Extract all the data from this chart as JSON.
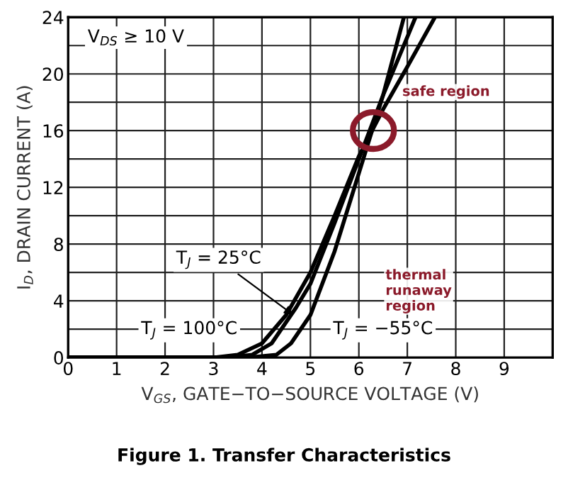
{
  "chart_data": {
    "type": "line",
    "title": "Figure 1. Transfer Characteristics",
    "xlabel": "V$_{GS}$, GATE−TO−SOURCE VOLTAGE (V)",
    "ylabel": "I$_{D}$, DRAIN CURRENT (A)",
    "xlim": [
      0,
      10
    ],
    "ylim": [
      0,
      24
    ],
    "xticks": [
      0,
      1,
      2,
      3,
      4,
      5,
      6,
      7,
      8,
      9
    ],
    "yticks": [
      0,
      {
        "value": 2,
        "label": null
      },
      4,
      {
        "value": 6,
        "label": null
      },
      8,
      {
        "value": 10,
        "label": null
      },
      12,
      {
        "value": 14,
        "label": null
      },
      16,
      {
        "value": 18,
        "label": null
      },
      20,
      {
        "value": 22,
        "label": null
      },
      24
    ],
    "grid": true,
    "marker": "none",
    "line_style": "solid",
    "series": [
      {
        "color": "#000000",
        "x": [
          0,
          3,
          3.5,
          4,
          4.5,
          5,
          5.5,
          6,
          6.5,
          7,
          7.57
        ],
        "values": [
          0,
          0,
          0.2,
          1,
          3,
          6,
          10,
          14.2,
          17.5,
          20.5,
          24
        ]
      },
      {
        "color": "#000000",
        "x": [
          0,
          3.3,
          3.8,
          4.2,
          4.7,
          5,
          5.5,
          6,
          6.5,
          7.17
        ],
        "values": [
          0,
          0,
          0.2,
          1,
          3.5,
          5.2,
          9.5,
          14,
          18.5,
          24
        ]
      },
      {
        "color": "#000000",
        "x": [
          0,
          3.7,
          4.3,
          4.6,
          5,
          5.5,
          6,
          6.5,
          6.93
        ],
        "values": [
          0,
          0,
          0.2,
          1,
          3,
          7.5,
          13,
          18.5,
          24
        ]
      }
    ],
    "annotations": [
      "safe region",
      "thermal\nrunaway\nregion",
      {
        "text": "T$_{J}$ = 25°C",
        "x": 4.65,
        "y": 3.0
      },
      "T$_{J}$ = 100°C",
      "T$_{J}$ = −55°C",
      "V$_{DS}$ ≥ 10 V"
    ]
  }
}
